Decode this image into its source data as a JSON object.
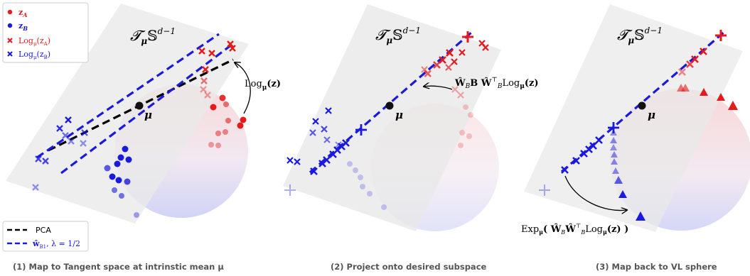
{
  "panels": [
    {
      "plane_label": "𝓣",
      "plane_sub": "μ",
      "plane_space": "𝕊",
      "plane_sup": "d−1",
      "mean_label": "μ",
      "annotation": "Log",
      "annotation_sub": "μ",
      "annotation_arg": "(z)",
      "caption": "(1) Map to Tangent space at intrinstic mean μ"
    },
    {
      "plane_label": "𝓣",
      "plane_sub": "μ",
      "plane_space": "𝕊",
      "plane_sup": "d−1",
      "mean_label": "μ",
      "annotation": "Ŵ",
      "annotation_rest": "B Ŵ",
      "annotation_t": "⊤",
      "annotation_b": "B",
      "annotation_log": "Log",
      "annotation_sub": "μ",
      "annotation_arg": "(z)",
      "caption": "(2) Project onto desired subspace"
    },
    {
      "plane_label": "𝓣",
      "plane_sub": "μ",
      "plane_space": "𝕊",
      "plane_sup": "d−1",
      "mean_label": "μ",
      "annotation": "Exp",
      "annotation_sub": "μ",
      "annotation_arg": "( Ŵ",
      "annotation_b": "B",
      "annotation_w2": "Ŵ",
      "annotation_t": "⊤",
      "annotation_b2": "B",
      "annotation_log": "Log",
      "annotation_sub2": "μ",
      "annotation_arg2": "(z) )",
      "caption": "(3) Map back to VL sphere"
    }
  ],
  "legend_top": {
    "items": [
      {
        "marker": "dot",
        "color": "#e41a1c",
        "label": "z",
        "sub": "A"
      },
      {
        "marker": "dot",
        "color": "#1a1adf",
        "label": "z",
        "sub": "B"
      },
      {
        "marker": "cross",
        "color": "#e41a1c",
        "label": "Log",
        "sub": "μ",
        "arg": "(z",
        "argsub": "A",
        "close": ")"
      },
      {
        "marker": "cross",
        "color": "#1a1adf",
        "label": "Log",
        "sub": "μ",
        "arg": "(z",
        "argsub": "B",
        "close": ")"
      }
    ]
  },
  "legend_bottom": {
    "items": [
      {
        "style": "dashed",
        "color": "#000000",
        "label": "PCA"
      },
      {
        "style": "dashed",
        "color": "#1a1adf",
        "label": "ŵ",
        "sub": "B1",
        "rest": ", λ = 1/2"
      }
    ]
  },
  "colors": {
    "red": "#e41a1c",
    "blue": "#1a1adf",
    "plane": "#e8e8e8",
    "caption": "#555555"
  }
}
